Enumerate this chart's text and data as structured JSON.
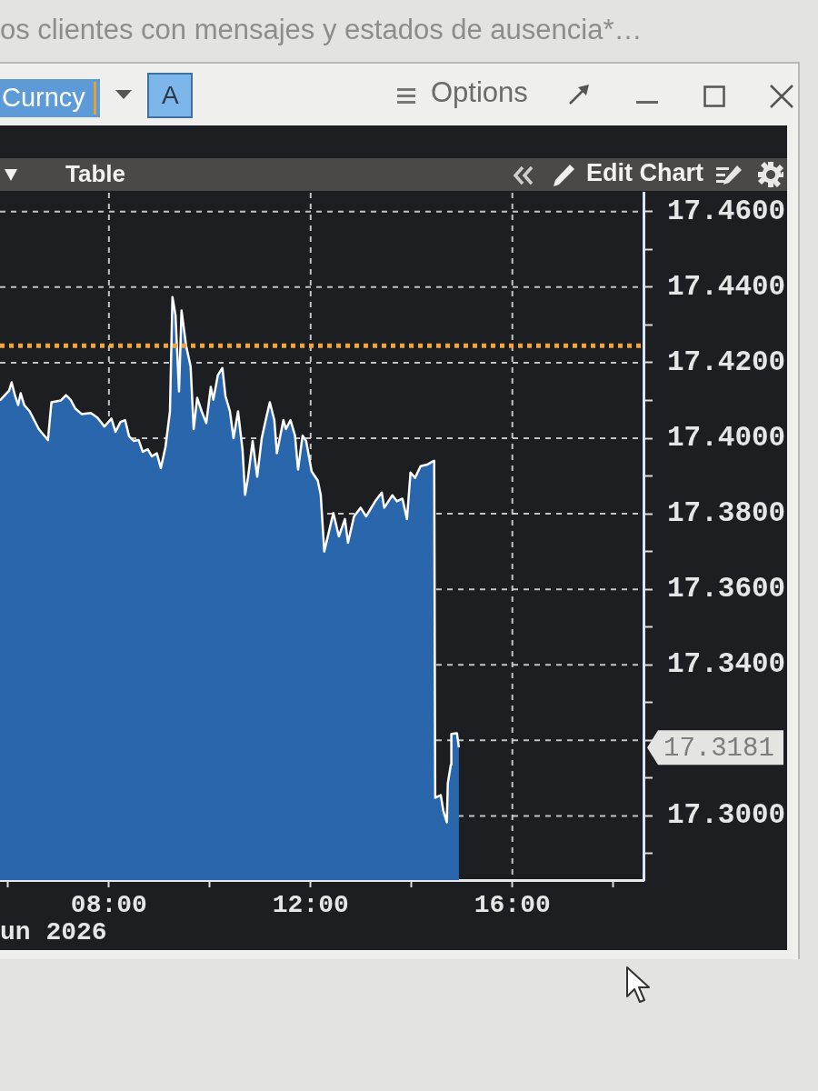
{
  "chart_data": {
    "type": "area",
    "xlabel": "un 2026",
    "annotations": [
      "os clientes con mensajes y estados de ausencia*…",
      "Curncy",
      "A",
      "Options",
      "Table",
      "Edit Chart",
      "17.3181"
    ],
    "x": [
      5.84,
      6.02,
      6.07,
      6.14,
      6.2,
      6.25,
      6.32,
      6.43,
      6.61,
      6.79,
      6.86,
      7.05,
      7.15,
      7.24,
      7.33,
      7.46,
      7.64,
      7.77,
      7.91,
      8.05,
      8.13,
      8.23,
      8.32,
      8.4,
      8.49,
      8.59,
      8.67,
      8.77,
      8.85,
      8.95,
      9.03,
      9.12,
      9.21,
      9.26,
      9.32,
      9.39,
      9.44,
      9.53,
      9.62,
      9.68,
      9.75,
      9.84,
      9.93,
      10.02,
      10.07,
      10.16,
      10.25,
      10.31,
      10.4,
      10.47,
      10.56,
      10.65,
      10.7,
      10.76,
      10.85,
      10.94,
      11.03,
      11.12,
      11.19,
      11.28,
      11.33,
      11.46,
      11.51,
      11.6,
      11.69,
      11.75,
      11.84,
      11.91,
      12.02,
      12.14,
      12.2,
      12.27,
      12.45,
      12.56,
      12.68,
      12.74,
      12.86,
      12.99,
      13.1,
      13.28,
      13.41,
      13.46,
      13.62,
      13.71,
      13.82,
      13.91,
      13.98,
      14.07,
      14.18,
      14.31,
      14.4,
      14.45,
      14.47,
      14.58,
      14.63,
      14.7,
      14.72,
      14.78,
      14.79,
      14.9,
      14.94
    ],
    "values": [
      17.41,
      17.4126,
      17.4148,
      17.4112,
      17.4088,
      17.4119,
      17.4088,
      17.4071,
      17.4024,
      17.3995,
      17.4095,
      17.41,
      17.4114,
      17.4102,
      17.4079,
      17.4064,
      17.4067,
      17.4055,
      17.4031,
      17.4052,
      17.4017,
      17.4043,
      17.4048,
      17.4005,
      17.3993,
      17.3995,
      17.3964,
      17.3971,
      17.3952,
      17.396,
      17.3921,
      17.3976,
      17.4071,
      17.4374,
      17.4326,
      17.4124,
      17.4338,
      17.4245,
      17.419,
      17.4024,
      17.4107,
      17.4071,
      17.404,
      17.4136,
      17.4102,
      17.4167,
      17.4186,
      17.4112,
      17.4071,
      17.4,
      17.4071,
      17.3969,
      17.385,
      17.3898,
      17.3993,
      17.3898,
      17.4,
      17.4055,
      17.4095,
      17.4048,
      17.396,
      17.4048,
      17.4024,
      17.4048,
      17.4007,
      17.3917,
      17.4007,
      17.3993,
      17.3912,
      17.3888,
      17.385,
      17.37,
      17.3802,
      17.374,
      17.3786,
      17.3723,
      17.3793,
      17.3816,
      17.3793,
      17.3833,
      17.3856,
      17.3816,
      17.3849,
      17.3833,
      17.384,
      17.3786,
      17.3909,
      17.3895,
      17.3926,
      17.393,
      17.3937,
      17.394,
      17.3048,
      17.3055,
      17.3014,
      17.2983,
      17.3087,
      17.3135,
      17.3217,
      17.3219,
      17.3181
    ],
    "color": "#2a66ac",
    "xlim": [
      5.84,
      18.6
    ],
    "xticks": [
      {
        "value": 6,
        "label": null
      },
      {
        "value": 8,
        "label": "08:00"
      },
      {
        "value": 10,
        "label": null
      },
      {
        "value": 12,
        "label": "12:00"
      },
      {
        "value": 14,
        "label": null
      },
      {
        "value": 16,
        "label": "16:00"
      },
      {
        "value": 18,
        "label": null
      }
    ],
    "ylim": [
      17.283,
      17.465
    ],
    "yticks": [
      {
        "value": 17.29,
        "label": null
      },
      {
        "value": 17.3,
        "label": "17.3000"
      },
      {
        "value": 17.31,
        "label": null
      },
      {
        "value": 17.32,
        "label": null
      },
      {
        "value": 17.33,
        "label": null
      },
      {
        "value": 17.34,
        "label": "17.3400"
      },
      {
        "value": 17.35,
        "label": null
      },
      {
        "value": 17.36,
        "label": "17.3600"
      },
      {
        "value": 17.37,
        "label": null
      },
      {
        "value": 17.38,
        "label": "17.3800"
      },
      {
        "value": 17.39,
        "label": null
      },
      {
        "value": 17.4,
        "label": "17.4000"
      },
      {
        "value": 17.41,
        "label": null
      },
      {
        "value": 17.42,
        "label": "17.4200"
      },
      {
        "value": 17.43,
        "label": null
      },
      {
        "value": 17.44,
        "label": "17.4400"
      },
      {
        "value": 17.45,
        "label": null
      },
      {
        "value": 17.46,
        "label": "17.4600"
      }
    ],
    "grid": true,
    "ref_lines": [
      {
        "axis": "y",
        "value": 17.4245,
        "color": "#f2a53a",
        "line_style": "dotted"
      }
    ]
  }
}
